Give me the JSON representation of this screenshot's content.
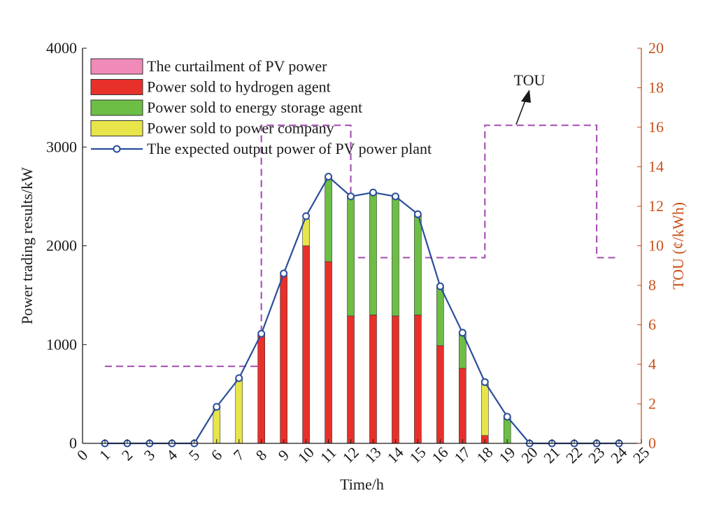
{
  "chart_data": {
    "type": "bar",
    "xlabel": "Time/h",
    "ylabel_left": "Power trading results/kW",
    "ylabel_right": "TOU (¢/kWh)",
    "xlim": [
      0,
      25
    ],
    "ylim_left": [
      0,
      4000
    ],
    "ylim_right": [
      0,
      20
    ],
    "x_ticks": [
      0,
      1,
      2,
      3,
      4,
      5,
      6,
      7,
      8,
      9,
      10,
      11,
      12,
      13,
      14,
      15,
      16,
      17,
      18,
      19,
      20,
      21,
      22,
      23,
      24,
      25
    ],
    "y_ticks_left": [
      0,
      1000,
      2000,
      3000,
      4000
    ],
    "y_ticks_right": [
      0,
      2,
      4,
      6,
      8,
      10,
      12,
      14,
      16,
      18,
      20
    ],
    "hours": [
      1,
      2,
      3,
      4,
      5,
      6,
      7,
      8,
      9,
      10,
      11,
      12,
      13,
      14,
      15,
      16,
      17,
      18,
      19,
      20,
      21,
      22,
      23,
      24
    ],
    "stacked_series": [
      {
        "name": "Power sold to hydrogen agent",
        "color": "#e8302a",
        "values": [
          0,
          0,
          0,
          0,
          0,
          0,
          0,
          1100,
          1700,
          2000,
          1840,
          1290,
          1300,
          1290,
          1300,
          990,
          760,
          80,
          0,
          0,
          0,
          0,
          0,
          0
        ]
      },
      {
        "name": "Power sold to energy storage agent",
        "color": "#6cbe45",
        "values": [
          0,
          0,
          0,
          0,
          0,
          0,
          0,
          0,
          0,
          0,
          860,
          1210,
          1240,
          1220,
          1020,
          590,
          350,
          0,
          260,
          0,
          0,
          0,
          0,
          0
        ]
      },
      {
        "name": "Power sold to power company",
        "color": "#e8e54a",
        "values": [
          0,
          0,
          0,
          0,
          0,
          350,
          650,
          0,
          0,
          270,
          0,
          0,
          0,
          0,
          0,
          0,
          0,
          520,
          0,
          0,
          0,
          0,
          0,
          0
        ]
      },
      {
        "name": "The curtailment of PV power",
        "color": "#f08ab8",
        "values": [
          0,
          0,
          0,
          0,
          0,
          0,
          0,
          0,
          0,
          0,
          0,
          0,
          0,
          0,
          0,
          0,
          0,
          0,
          0,
          0,
          0,
          0,
          0,
          0
        ]
      }
    ],
    "line_series": {
      "name": "The expected output power of PV power plant",
      "color": "#2a4d9b",
      "values": [
        0,
        0,
        0,
        0,
        0,
        370,
        660,
        1110,
        1720,
        2300,
        2700,
        2500,
        2540,
        2500,
        2320,
        1590,
        1120,
        620,
        270,
        0,
        0,
        0,
        0,
        0
      ]
    },
    "tou": {
      "name": "TOU",
      "color": "#a855b5",
      "steps": [
        {
          "from": 1,
          "to": 8,
          "price": 3.9
        },
        {
          "from": 8,
          "to": 12,
          "price": 16.1
        },
        {
          "from": 12,
          "to": 18,
          "price": 9.4
        },
        {
          "from": 18,
          "to": 23,
          "price": 16.1
        },
        {
          "from": 23,
          "to": 24,
          "price": 9.4
        }
      ]
    },
    "legend_position": "top-left",
    "legend": [
      "The curtailment of PV power",
      "Power sold to hydrogen agent",
      "Power sold to energy storage agent",
      "Power sold to power company",
      "The expected output power of PV power plant"
    ],
    "annotations": [
      {
        "text": "TOU"
      }
    ],
    "colors": {
      "axis_left": "#1a1a1a",
      "axis_right": "#c8511b"
    }
  }
}
